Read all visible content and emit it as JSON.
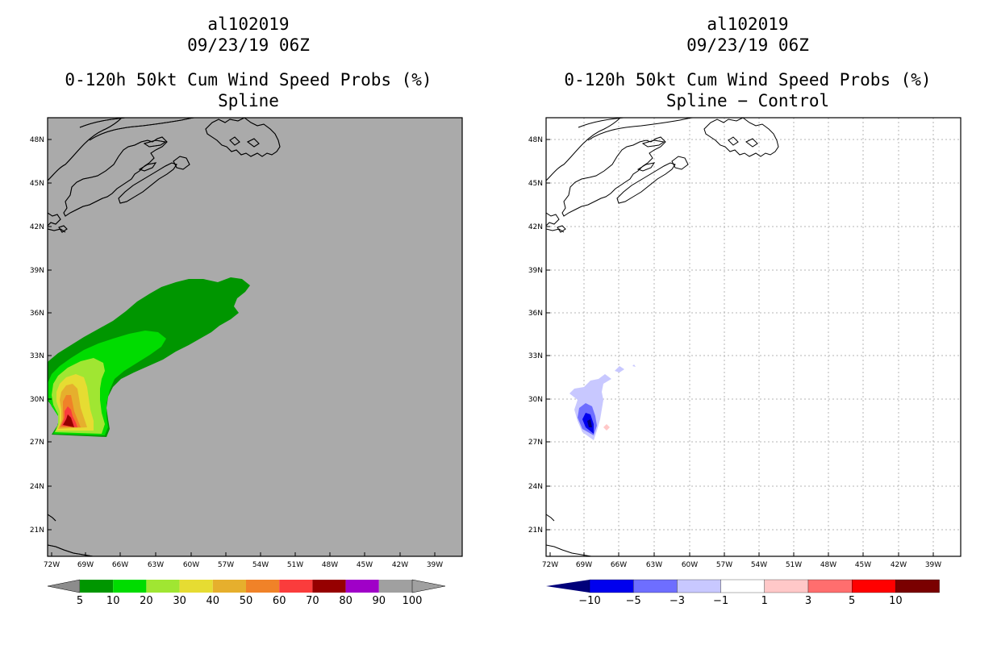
{
  "panels": [
    {
      "storm_id": "al102019",
      "datetime": "09/23/19 06Z",
      "product": "0-120h 50kt Cum Wind Speed Probs (%)",
      "subtitle": "Spline",
      "background": "#aaaaaa",
      "colorbar": {
        "labels": [
          "5",
          "10",
          "20",
          "30",
          "40",
          "50",
          "60",
          "70",
          "80",
          "90",
          "100"
        ],
        "colors": [
          "#8c8c8c",
          "#009600",
          "#00dc00",
          "#a0e632",
          "#e6dc32",
          "#e6af2d",
          "#f08228",
          "#fa3c3c",
          "#960000",
          "#a000c8",
          "#a0a0a0"
        ]
      }
    },
    {
      "storm_id": "al102019",
      "datetime": "09/23/19 06Z",
      "product": "0-120h 50kt Cum Wind Speed Probs (%)",
      "subtitle": "Spline − Control",
      "background": "#ffffff",
      "colorbar": {
        "labels": [
          "−10",
          "−5",
          "−3",
          "−1",
          "1",
          "3",
          "5",
          "10"
        ],
        "colors": [
          "#00007a",
          "#0000ee",
          "#6e6eff",
          "#c8c8ff",
          "#ffffff",
          "#ffc8c8",
          "#ff6e6e",
          "#ff0000",
          "#7a0000"
        ]
      }
    }
  ],
  "axes": {
    "lat_labels": [
      "48N",
      "45N",
      "42N",
      "39N",
      "36N",
      "33N",
      "30N",
      "27N",
      "24N",
      "21N"
    ],
    "lon_labels": [
      "72W",
      "69W",
      "66W",
      "63W",
      "60W",
      "57W",
      "54W",
      "51W",
      "48W",
      "45W",
      "42W",
      "39W"
    ]
  }
}
